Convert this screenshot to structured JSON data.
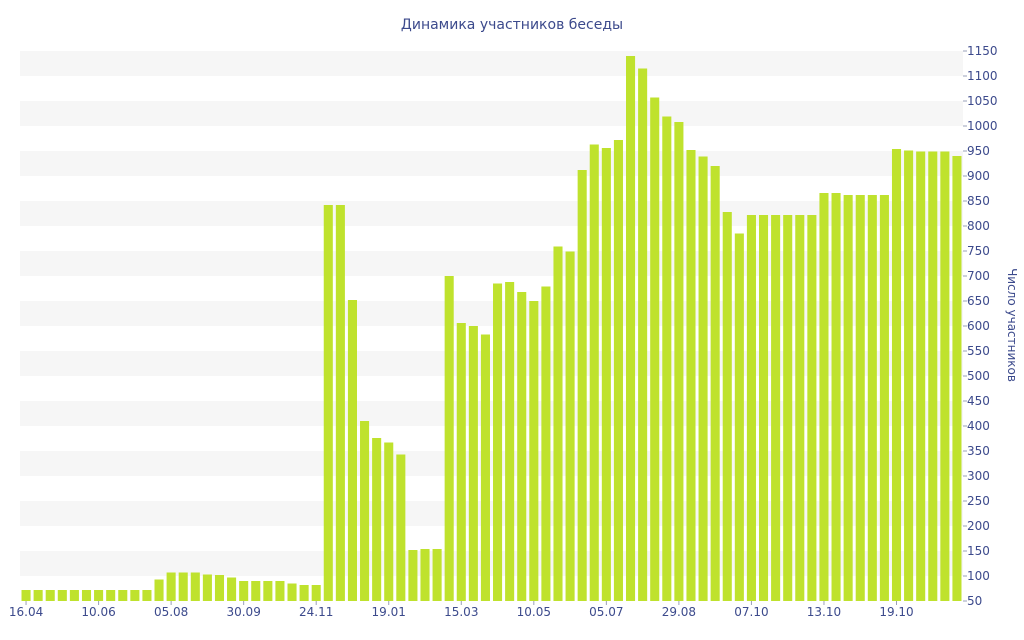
{
  "chart_data": {
    "type": "bar",
    "title": "Динамика участников беседы",
    "ylabel": "Число участников",
    "xlabel": "",
    "ylim": [
      50,
      1150
    ],
    "yticks": [
      50,
      100,
      150,
      200,
      250,
      300,
      350,
      400,
      450,
      500,
      550,
      600,
      650,
      700,
      750,
      800,
      850,
      900,
      950,
      1000,
      1050,
      1100,
      1150
    ],
    "y_axis_side": "right",
    "grid": "alternating horizontal bands",
    "legend": "none",
    "bar_color": "#bfe22d",
    "band_color": "#f6f6f6",
    "text_color": "#3c4a8c",
    "x_tick_labels": [
      {
        "label": "16.04",
        "index": 0
      },
      {
        "label": "10.06",
        "index": 6
      },
      {
        "label": "05.08",
        "index": 12
      },
      {
        "label": "30.09",
        "index": 18
      },
      {
        "label": "24.11",
        "index": 24
      },
      {
        "label": "19.01",
        "index": 30
      },
      {
        "label": "15.03",
        "index": 36
      },
      {
        "label": "10.05",
        "index": 42
      },
      {
        "label": "05.07",
        "index": 48
      },
      {
        "label": "29.08",
        "index": 54
      },
      {
        "label": "07.10",
        "index": 60
      },
      {
        "label": "13.10",
        "index": 66
      },
      {
        "label": "19.10",
        "index": 72
      }
    ],
    "values": [
      72,
      72,
      72,
      72,
      72,
      72,
      72,
      72,
      72,
      72,
      72,
      93,
      107,
      107,
      107,
      103,
      102,
      97,
      90,
      90,
      90,
      90,
      85,
      82,
      82,
      842,
      842,
      652,
      410,
      376,
      367,
      343,
      152,
      154,
      154,
      700,
      606,
      600,
      583,
      685,
      688,
      668,
      650,
      679,
      759,
      749,
      912,
      963,
      956,
      972,
      1140,
      1115,
      1057,
      1019,
      1008,
      952,
      939,
      920,
      828,
      785,
      822,
      822,
      822,
      822,
      822,
      822,
      866,
      866,
      862,
      862,
      862,
      862,
      954,
      951,
      949,
      949,
      949,
      940
    ]
  }
}
